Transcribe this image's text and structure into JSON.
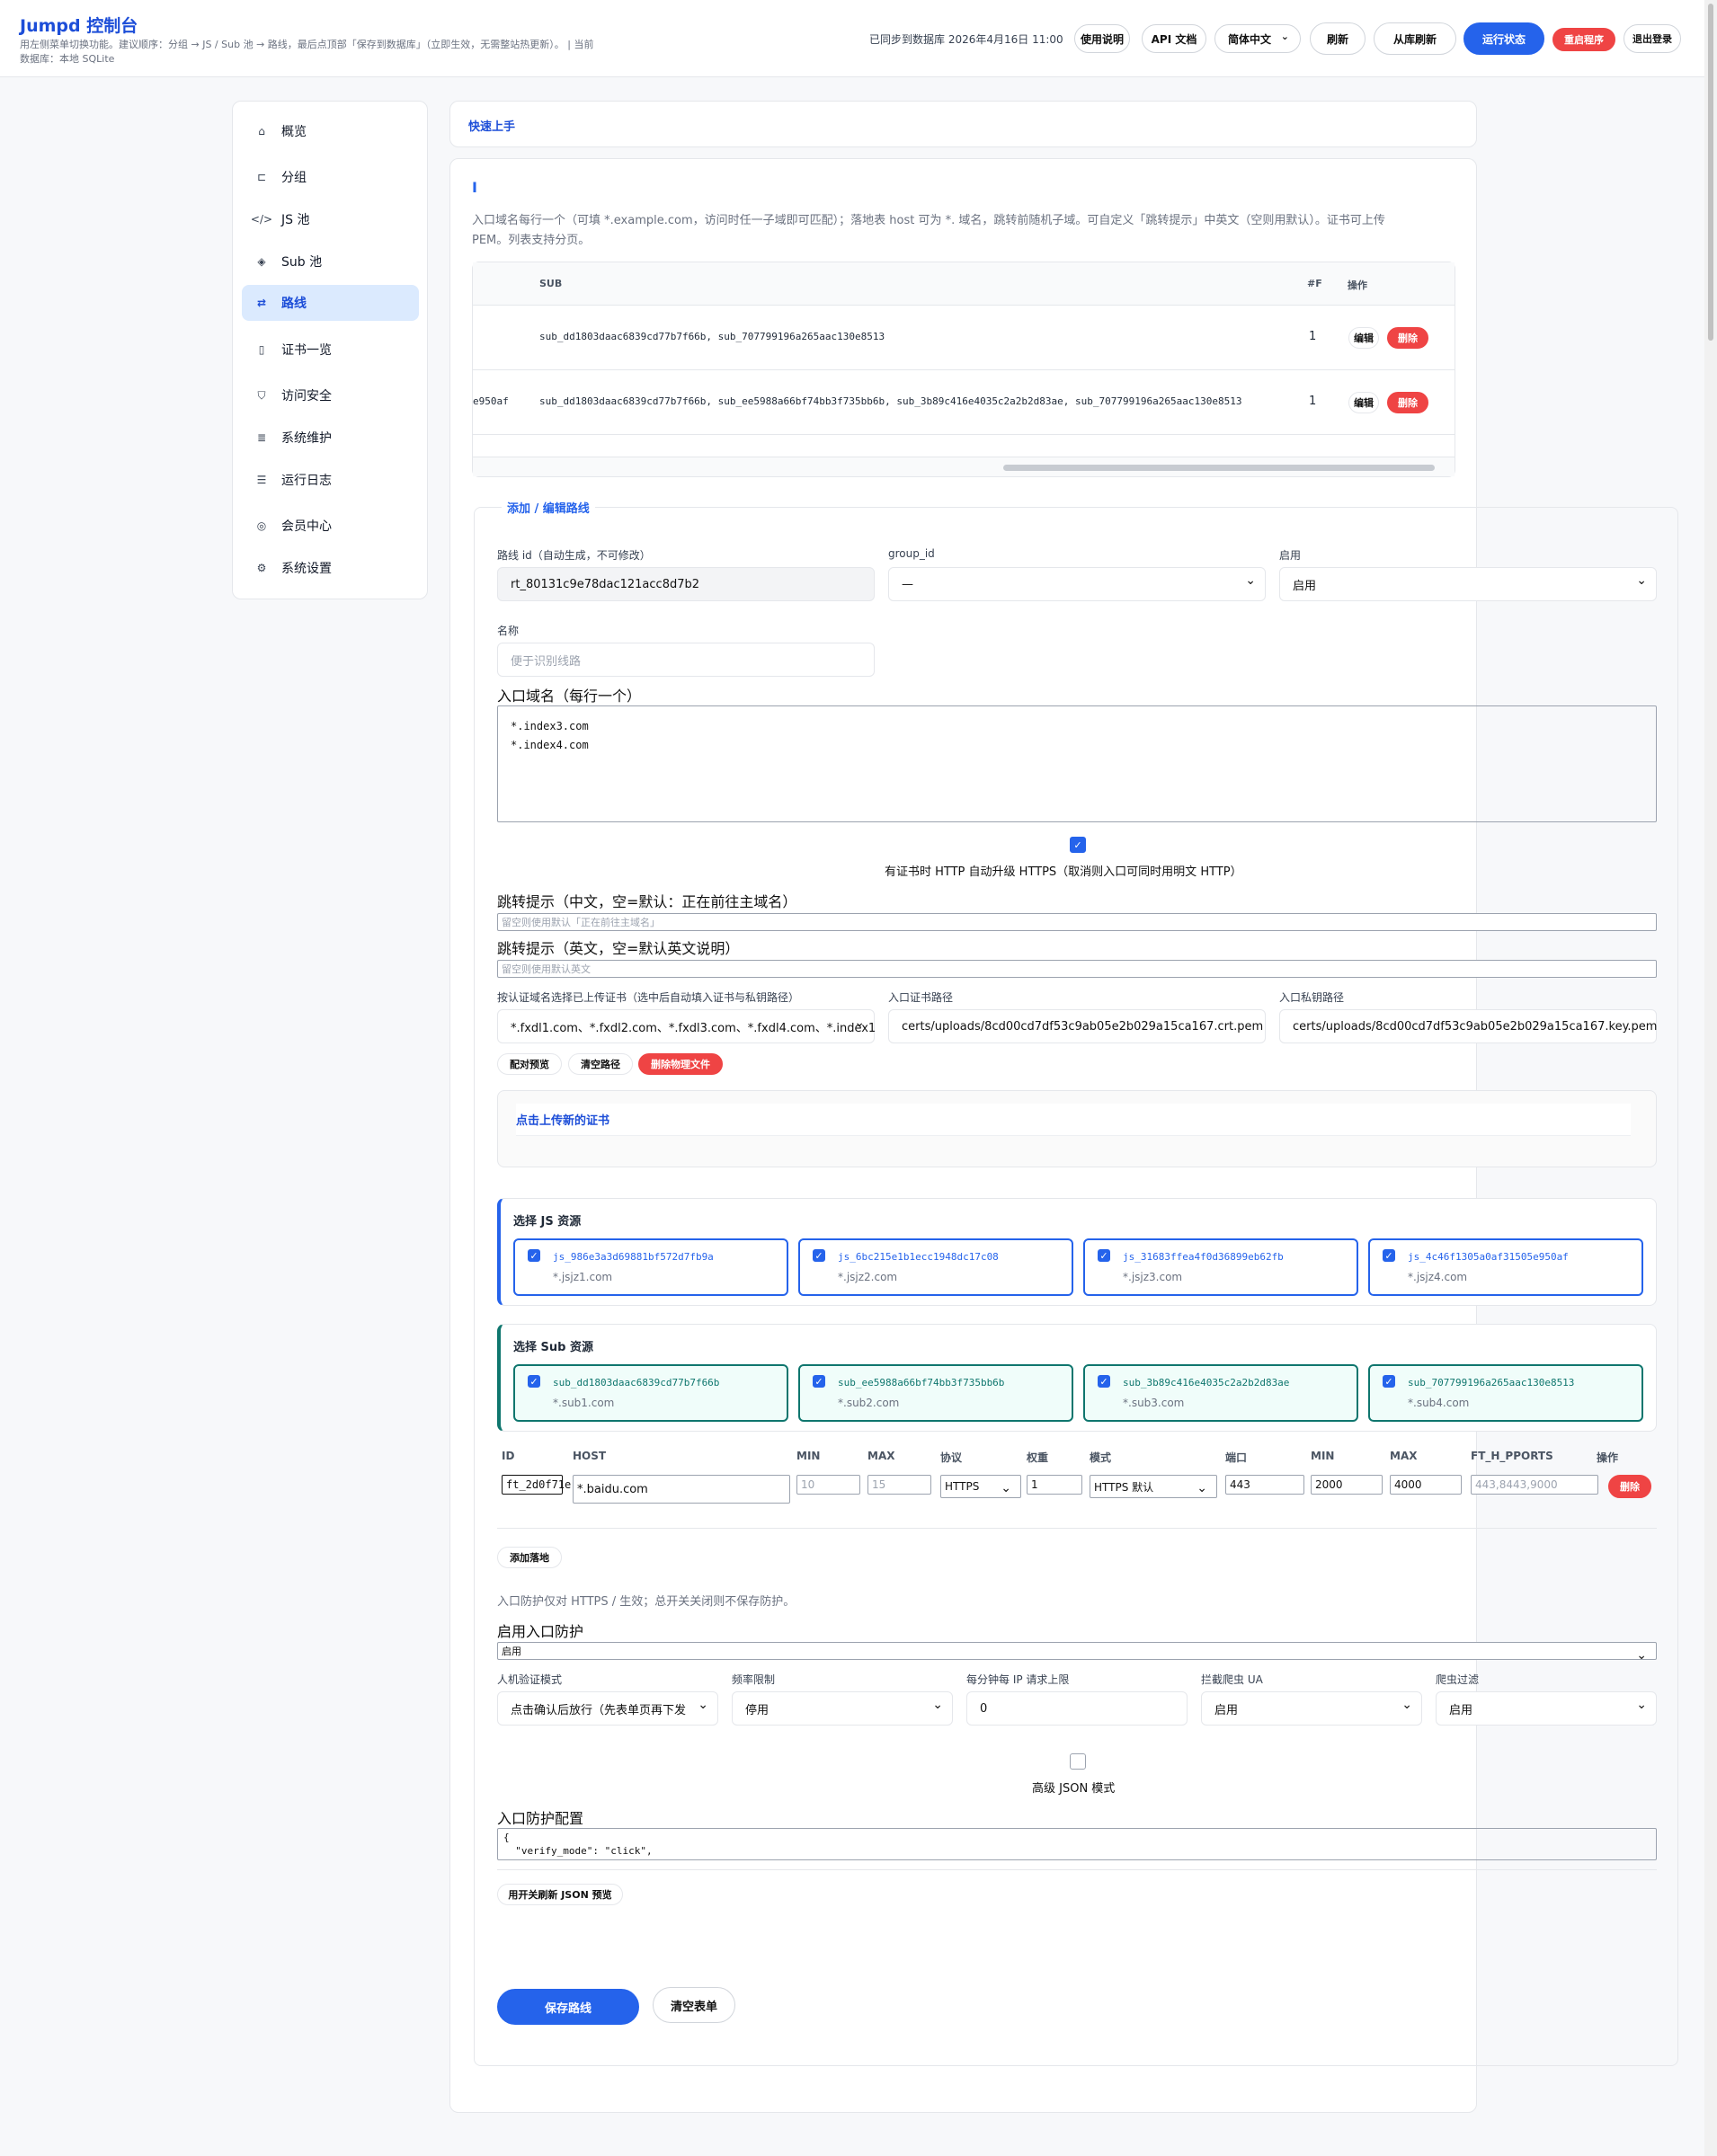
{
  "header": {
    "title": "Jumpd 控制台",
    "subtitle": "用左侧菜单切换功能。建议顺序：分组 → JS / Sub 池 → 路线，最后点顶部「保存到数据库」（立即生效，无需整站热更新）。 | 当前",
    "db_line": "数据库：本地 SQLite",
    "sync_status": "已同步到数据库 2026年4月16日 11:00",
    "btn_help": "使用说明",
    "btn_api": "API 文档",
    "lang_select": "简体中文",
    "btn_refresh": "刷新",
    "btn_reload_db": "从库刷新",
    "btn_status": "运行状态",
    "btn_restart": "重启程序",
    "btn_logout": "退出登录"
  },
  "sidebar": {
    "items": [
      {
        "label": "概览",
        "icon": "home-icon"
      },
      {
        "label": "分组",
        "icon": "group-icon"
      },
      {
        "label": "JS 池",
        "icon": "code-icon"
      },
      {
        "label": "Sub 池",
        "icon": "layers-icon"
      },
      {
        "label": "路线",
        "icon": "route-icon",
        "active": true
      },
      {
        "label": "证书一览",
        "icon": "file-icon"
      },
      {
        "label": "访问安全",
        "icon": "shield-icon"
      },
      {
        "label": "系统维护",
        "icon": "database-icon"
      },
      {
        "label": "运行日志",
        "icon": "log-icon"
      },
      {
        "label": "会员中心",
        "icon": "user-icon"
      },
      {
        "label": "系统设置",
        "icon": "settings-icon"
      }
    ]
  },
  "quickstart": {
    "label": "快速上手"
  },
  "routes": {
    "section_marker": "I",
    "description": "入口域名每行一个（可填 *.example.com，访问时任一子域即可匹配）；落地表 host 可为 *. 域名，跳转前随机子域。可自定义「跳转提示」中英文（空则用默认）。证书可上传 PEM。列表支持分页。",
    "table": {
      "headers": {
        "sub": "SUB",
        "count": "#F",
        "ops": "操作"
      },
      "rows": [
        {
          "prefix": "",
          "sub": "sub_dd1803daac6839cd77b7f66b, sub_707799196a265aac130e8513",
          "count": "1",
          "edit": "编辑",
          "delete": "删除"
        },
        {
          "prefix": "e950af",
          "sub": "sub_dd1803daac6839cd77b7f66b, sub_ee5988a66bf74bb3f735bb6b, sub_3b89c416e4035c2a2b2d83ae, sub_707799196a265aac130e8513",
          "count": "1",
          "edit": "编辑",
          "delete": "删除"
        }
      ]
    }
  },
  "form": {
    "legend": "添加 / 编辑路线",
    "route_id_label": "路线 id（自动生成，不可修改）",
    "route_id_value": "rt_80131c9e78dac121acc8d7b2",
    "group_id_label": "group_id",
    "group_id_value": "—",
    "enabled_label": "启用",
    "enabled_value": "启用",
    "name_label": "名称",
    "name_placeholder": "便于识别线路",
    "domains_label": "入口域名（每行一个）",
    "domains_value": "*.index3.com\n*.index4.com",
    "https_upgrade_label": "有证书时 HTTP 自动升级 HTTPS（取消则入口可同时用明文 HTTP）",
    "tip_cn_label": "跳转提示（中文，空=默认：正在前往主域名）",
    "tip_cn_placeholder": "留空则使用默认「正在前往主域名」",
    "tip_en_label": "跳转提示（英文，空=默认英文说明）",
    "tip_en_placeholder": "留空则使用默认英文",
    "cert_pick_label": "按认证域名选择已上传证书（选中后自动填入证书与私钥路径）",
    "cert_pick_value": "*.fxdl1.com、*.fxdl2.com、*.fxdl3.com、*.fxdl4.com、*.index1",
    "cert_path_label": "入口证书路径",
    "cert_path_value": "certs/uploads/8cd00cd7df53c9ab05e2b029a15ca167.crt.pem",
    "key_path_label": "入口私钥路径",
    "key_path_value": "certs/uploads/8cd00cd7df53c9ab05e2b029a15ca167.key.pem",
    "btn_pair_preview": "配对预览",
    "btn_clear_path": "清空路径",
    "btn_delete_file": "删除物理文件",
    "upload_link": "点击上传新的证书",
    "js_title": "选择 JS 资源",
    "js_items": [
      {
        "name": "js_986e3a3d69881bf572d7fb9a",
        "domain": "*.jsjz1.com"
      },
      {
        "name": "js_6bc215e1b1ecc1948dc17c08",
        "domain": "*.jsjz2.com"
      },
      {
        "name": "js_31683ffea4f0d36899eb62fb",
        "domain": "*.jsjz3.com"
      },
      {
        "name": "js_4c46f1305a0af31505e950af",
        "domain": "*.jsjz4.com"
      }
    ],
    "sub_title": "选择 Sub 资源",
    "sub_items": [
      {
        "name": "sub_dd1803daac6839cd77b7f66b",
        "domain": "*.sub1.com"
      },
      {
        "name": "sub_ee5988a66bf74bb3f735bb6b",
        "domain": "*.sub2.com"
      },
      {
        "name": "sub_3b89c416e4035c2a2b2d83ae",
        "domain": "*.sub3.com"
      },
      {
        "name": "sub_707799196a265aac130e8513",
        "domain": "*.sub4.com"
      }
    ],
    "landing": {
      "headers": [
        "ID",
        "HOST",
        "MIN",
        "MAX",
        "协议",
        "权重",
        "模式",
        "端口",
        "MIN",
        "MAX",
        "FT_H_PPORTS",
        "操作"
      ],
      "row": {
        "id": "ft_2d0f71e",
        "host": "*.baidu.com",
        "min_ph": "10",
        "max_ph": "15",
        "proto": "HTTPS",
        "weight": "1",
        "mode": "HTTPS 默认",
        "port": "443",
        "min2": "2000",
        "max2": "4000",
        "ports_ph": "443,8443,9000",
        "delete": "删除"
      },
      "btn_add": "添加落地"
    },
    "protect_note": "入口防护仅对 HTTPS / 生效；总开关关闭则不保存防护。",
    "protect_enable_label": "启用入口防护",
    "protect_enable_value": "启用",
    "captcha_label": "人机验证模式",
    "captcha_value": "点击确认后放行（先表单页再下发",
    "rate_label": "频率限制",
    "rate_value": "停用",
    "ip_limit_label": "每分钟每 IP 请求上限",
    "ip_limit_value": "0",
    "ua_label": "拦截爬虫 UA",
    "ua_value": "启用",
    "crawler_label": "爬虫过滤",
    "crawler_value": "启用",
    "adv_json_label": "高级 JSON 模式",
    "protect_config_label": "入口防护配置",
    "protect_config_value": "{\n  \"verify_mode\": \"click\",",
    "btn_refresh_json": "用开关刷新 JSON 预览",
    "btn_save": "保存路线",
    "btn_clear": "清空表单"
  }
}
